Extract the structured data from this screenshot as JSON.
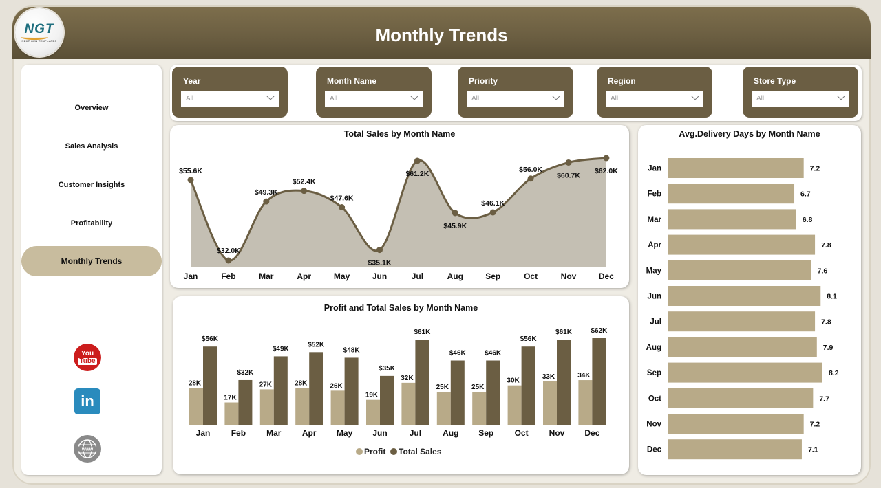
{
  "header": {
    "title": "Monthly Trends",
    "logo_text": "NGT",
    "logo_subtext": "NEXT GEN TEMPLATES"
  },
  "sidebar": {
    "items": [
      {
        "label": "Overview",
        "active": false
      },
      {
        "label": "Sales Analysis",
        "active": false
      },
      {
        "label": "Customer Insights",
        "active": false
      },
      {
        "label": "Profitability",
        "active": false
      },
      {
        "label": "Monthly Trends",
        "active": true
      }
    ],
    "social": [
      {
        "name": "youtube-icon",
        "line1": "You",
        "line2": "Tube"
      },
      {
        "name": "linkedin-icon",
        "label": "in"
      },
      {
        "name": "website-icon",
        "label": "www"
      }
    ]
  },
  "filters": [
    {
      "label": "Year",
      "value": "All"
    },
    {
      "label": "Month Name",
      "value": "All"
    },
    {
      "label": "Priority",
      "value": "All"
    },
    {
      "label": "Region",
      "value": "All"
    },
    {
      "label": "Store Type",
      "value": "All"
    }
  ],
  "colors": {
    "header": "#6b5e43",
    "dark_series": "#6b5e43",
    "light_series": "#b8aa88",
    "area_fill": "#c4bfb3",
    "active_nav": "#c8bc9e"
  },
  "chart_data": [
    {
      "type": "area",
      "title": "Total Sales by Month Name",
      "categories": [
        "Jan",
        "Feb",
        "Mar",
        "Apr",
        "May",
        "Jun",
        "Jul",
        "Aug",
        "Sep",
        "Oct",
        "Nov",
        "Dec"
      ],
      "values": [
        55.6,
        32.0,
        49.3,
        52.4,
        47.6,
        35.1,
        61.2,
        45.9,
        46.1,
        56.0,
        60.7,
        62.0
      ],
      "labels": [
        "$55.6K",
        "$32.0K",
        "$49.3K",
        "$52.4K",
        "$47.6K",
        "$35.1K",
        "$61.2K",
        "$45.9K",
        "$46.1K",
        "$56.0K",
        "$60.7K",
        "$62.0K"
      ],
      "unit": "$K",
      "xlabel": "",
      "ylabel": "",
      "grid": false
    },
    {
      "type": "bar",
      "title": "Profit and Total Sales by Month Name",
      "categories": [
        "Jan",
        "Feb",
        "Mar",
        "Apr",
        "May",
        "Jun",
        "Jul",
        "Aug",
        "Sep",
        "Oct",
        "Nov",
        "Dec"
      ],
      "series": [
        {
          "name": "Profit",
          "values": [
            28,
            17,
            27,
            28,
            26,
            19,
            32,
            25,
            25,
            30,
            33,
            34
          ],
          "labels": [
            "28K",
            "17K",
            "27K",
            "28K",
            "26K",
            "19K",
            "32K",
            "25K",
            "25K",
            "30K",
            "33K",
            "34K"
          ]
        },
        {
          "name": "Total Sales",
          "values": [
            56,
            32,
            49,
            52,
            48,
            35,
            61,
            46,
            46,
            56,
            61,
            62
          ],
          "labels": [
            "$56K",
            "$32K",
            "$49K",
            "$52K",
            "$48K",
            "$35K",
            "$61K",
            "$46K",
            "$46K",
            "$56K",
            "$61K",
            "$62K"
          ]
        }
      ],
      "legend_position": "bottom",
      "grid": false
    },
    {
      "type": "bar",
      "orientation": "horizontal",
      "title": "Avg.Delivery Days by Month Name",
      "categories": [
        "Jan",
        "Feb",
        "Mar",
        "Apr",
        "May",
        "Jun",
        "Jul",
        "Aug",
        "Sep",
        "Oct",
        "Nov",
        "Dec"
      ],
      "values": [
        7.2,
        6.7,
        6.8,
        7.8,
        7.6,
        8.1,
        7.8,
        7.9,
        8.2,
        7.7,
        7.2,
        7.1
      ],
      "grid": false
    }
  ]
}
